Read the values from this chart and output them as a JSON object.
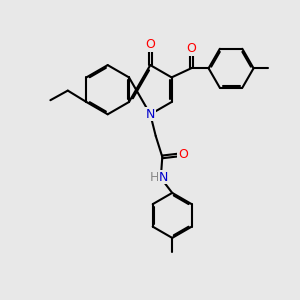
{
  "bg_color": "#e8e8e8",
  "bond_color": "#000000",
  "bond_width": 1.5,
  "atom_colors": {
    "O": "#ff0000",
    "N": "#0000cc",
    "H": "#888888"
  },
  "font_size": 9.0,
  "fig_size": [
    3.0,
    3.0
  ],
  "dpi": 100,
  "bl": 0.82
}
